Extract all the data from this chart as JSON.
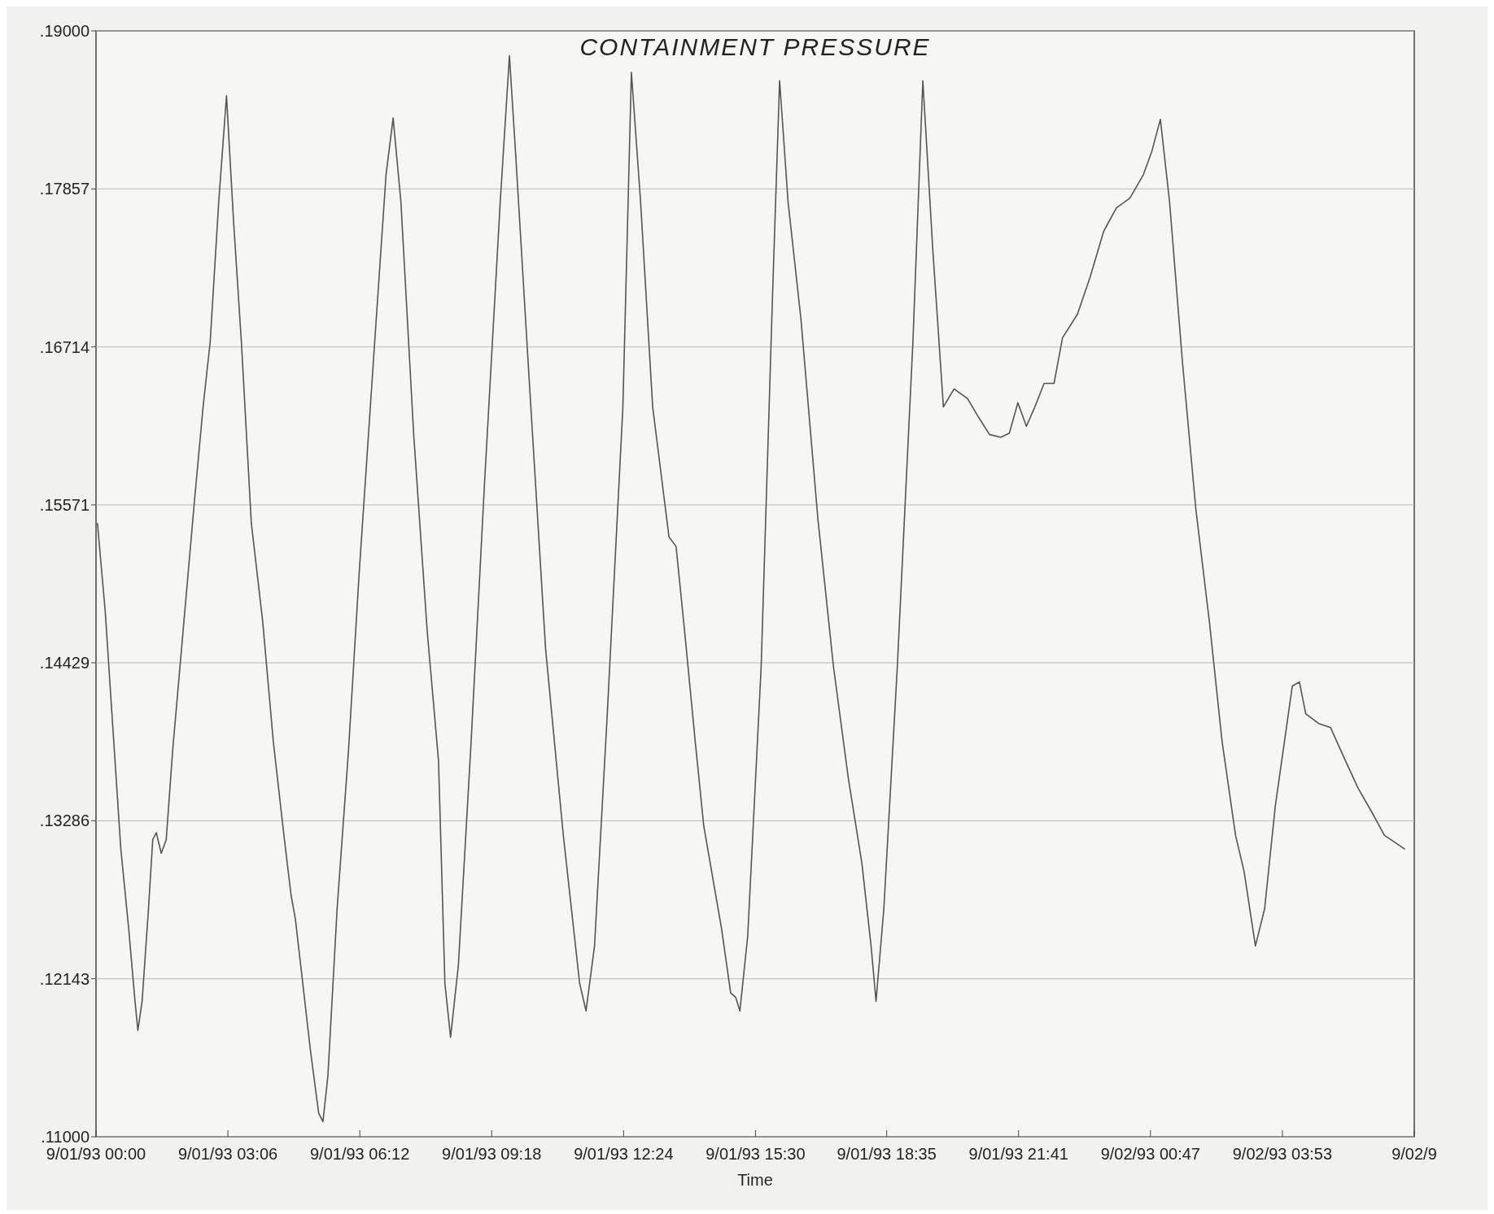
{
  "chart_data": {
    "type": "line",
    "title": "CONTAINMENT PRESSURE",
    "xlabel": "Time",
    "grid": "y",
    "xlim": [
      "1993-09-01T00:00",
      "1993-09-02T06:59"
    ],
    "ylim": [
      0.11,
      0.19
    ],
    "xticks": [
      {
        "value": "1993-09-01T00:00",
        "label": "9/01/93 00:00"
      },
      {
        "value": "1993-09-01T03:06",
        "label": "9/01/93 03:06"
      },
      {
        "value": "1993-09-01T06:12",
        "label": "9/01/93 06:12"
      },
      {
        "value": "1993-09-01T09:18",
        "label": "9/01/93 09:18"
      },
      {
        "value": "1993-09-01T12:24",
        "label": "9/01/93 12:24"
      },
      {
        "value": "1993-09-01T15:30",
        "label": "9/01/93 15:30"
      },
      {
        "value": "1993-09-01T18:35",
        "label": "9/01/93 18:35"
      },
      {
        "value": "1993-09-01T21:41",
        "label": "9/01/93 21:41"
      },
      {
        "value": "1993-09-02T00:47",
        "label": "9/02/93 00:47"
      },
      {
        "value": "1993-09-02T03:53",
        "label": "9/02/93 03:53"
      },
      {
        "value": "1993-09-02T06:59",
        "label": "9/02/9"
      }
    ],
    "yticks": [
      {
        "value": 0.11,
        "label": ".11000"
      },
      {
        "value": 0.12143,
        "label": ".12143"
      },
      {
        "value": 0.13286,
        "label": ".13286"
      },
      {
        "value": 0.14429,
        "label": ".14429"
      },
      {
        "value": 0.15571,
        "label": ".15571"
      },
      {
        "value": 0.16714,
        "label": ".16714"
      },
      {
        "value": 0.17857,
        "label": ".17857"
      },
      {
        "value": 0.19,
        "label": ".19000"
      }
    ],
    "series": [
      {
        "color": "#555555",
        "x": [
          "1993-09-01T00:02",
          "1993-09-01T00:13",
          "1993-09-01T00:25",
          "1993-09-01T00:35",
          "1993-09-01T00:46",
          "1993-09-01T00:55",
          "1993-09-01T00:59",
          "1993-09-01T01:05",
          "1993-09-01T01:14",
          "1993-09-01T01:20",
          "1993-09-01T01:25",
          "1993-09-01T01:32",
          "1993-09-01T01:39",
          "1993-09-01T01:48",
          "1993-09-01T02:04",
          "1993-09-01T02:19",
          "1993-09-01T02:31",
          "1993-09-01T02:41",
          "1993-09-01T02:53",
          "1993-09-01T03:04",
          "1993-09-01T03:14",
          "1993-09-01T03:25",
          "1993-09-01T03:39",
          "1993-09-01T03:55",
          "1993-09-01T04:10",
          "1993-09-01T04:25",
          "1993-09-01T04:35",
          "1993-09-01T04:41",
          "1993-09-01T04:50",
          "1993-09-01T05:02",
          "1993-09-01T05:14",
          "1993-09-01T05:20",
          "1993-09-01T05:27",
          "1993-09-01T05:40",
          "1993-09-01T05:56",
          "1993-09-01T06:11",
          "1993-09-01T06:33",
          "1993-09-01T06:49",
          "1993-09-01T06:59",
          "1993-09-01T07:10",
          "1993-09-01T07:28",
          "1993-09-01T07:47",
          "1993-09-01T08:03",
          "1993-09-01T08:12",
          "1993-09-01T08:20",
          "1993-09-01T08:31",
          "1993-09-01T08:49",
          "1993-09-01T09:08",
          "1993-09-01T09:30",
          "1993-09-01T09:43",
          "1993-09-01T09:52",
          "1993-09-01T10:10",
          "1993-09-01T10:34",
          "1993-09-01T10:59",
          "1993-09-01T11:22",
          "1993-09-01T11:31",
          "1993-09-01T11:43",
          "1993-09-01T12:01",
          "1993-09-01T12:23",
          "1993-09-01T12:35",
          "1993-09-01T12:48",
          "1993-09-01T13:05",
          "1993-09-01T13:28",
          "1993-09-01T13:38",
          "1993-09-01T13:50",
          "1993-09-01T14:05",
          "1993-09-01T14:17",
          "1993-09-01T14:42",
          "1993-09-01T14:55",
          "1993-09-01T15:02",
          "1993-09-01T15:08",
          "1993-09-01T15:19",
          "1993-09-01T15:38",
          "1993-09-01T15:54",
          "1993-09-01T16:04",
          "1993-09-01T16:16",
          "1993-09-01T16:34",
          "1993-09-01T16:58",
          "1993-09-01T17:20",
          "1993-09-01T17:41",
          "1993-09-01T18:00",
          "1993-09-01T18:13",
          "1993-09-01T18:20",
          "1993-09-01T18:31",
          "1993-09-01T18:50",
          "1993-09-01T19:12",
          "1993-09-01T19:26",
          "1993-09-01T19:40",
          "1993-09-01T19:55",
          "1993-09-01T20:10",
          "1993-09-01T20:29",
          "1993-09-01T20:44",
          "1993-09-01T21:00",
          "1993-09-01T21:16",
          "1993-09-01T21:28",
          "1993-09-01T21:40",
          "1993-09-01T21:52",
          "1993-09-01T22:04",
          "1993-09-01T22:17",
          "1993-09-01T22:31",
          "1993-09-01T22:43",
          "1993-09-01T23:04",
          "1993-09-01T23:22",
          "1993-09-01T23:41",
          "1993-09-01T23:59",
          "1993-09-02T00:18",
          "1993-09-02T00:37",
          "1993-09-02T00:49",
          "1993-09-02T01:01",
          "1993-09-02T01:14",
          "1993-09-02T01:32",
          "1993-09-02T01:51",
          "1993-09-02T02:10",
          "1993-09-02T02:28",
          "1993-09-02T02:47",
          "1993-09-02T02:59",
          "1993-09-02T03:15",
          "1993-09-02T03:28",
          "1993-09-02T03:43",
          "1993-09-02T04:07",
          "1993-09-02T04:17",
          "1993-09-02T04:26",
          "1993-09-02T04:44",
          "1993-09-02T05:01",
          "1993-09-02T05:22",
          "1993-09-02T05:40",
          "1993-09-02T05:59",
          "1993-09-02T06:17",
          "1993-09-02T06:46"
        ],
        "values": [
          0.1544,
          0.148,
          0.1386,
          0.1308,
          0.1251,
          0.1198,
          0.1177,
          0.1198,
          0.1265,
          0.1315,
          0.132,
          0.1305,
          0.1315,
          0.1379,
          0.1473,
          0.1561,
          0.1628,
          0.1675,
          0.1776,
          0.1853,
          0.1762,
          0.1675,
          0.1544,
          0.1473,
          0.1386,
          0.1318,
          0.1275,
          0.1258,
          0.1218,
          0.1164,
          0.1117,
          0.1111,
          0.1144,
          0.1265,
          0.1379,
          0.1507,
          0.1675,
          0.1796,
          0.1837,
          0.1776,
          0.1608,
          0.1466,
          0.1372,
          0.1211,
          0.1172,
          0.1224,
          0.1386,
          0.1574,
          0.1776,
          0.1882,
          0.1809,
          0.1655,
          0.1453,
          0.1318,
          0.1211,
          0.1191,
          0.1238,
          0.1406,
          0.1628,
          0.187,
          0.1776,
          0.1628,
          0.1534,
          0.1527,
          0.1466,
          0.1386,
          0.1325,
          0.1251,
          0.1204,
          0.1201,
          0.1191,
          0.1245,
          0.144,
          0.1708,
          0.1864,
          0.1776,
          0.1692,
          0.1547,
          0.144,
          0.1359,
          0.1298,
          0.1238,
          0.1198,
          0.1265,
          0.144,
          0.1675,
          0.1864,
          0.1742,
          0.1628,
          0.1641,
          0.1634,
          0.1621,
          0.1608,
          0.1606,
          0.1609,
          0.1631,
          0.1614,
          0.1628,
          0.1645,
          0.1645,
          0.1678,
          0.1695,
          0.1722,
          0.1755,
          0.1772,
          0.1779,
          0.1796,
          0.1813,
          0.1836,
          0.1776,
          0.1661,
          0.1554,
          0.1473,
          0.1386,
          0.1318,
          0.1292,
          0.1238,
          0.1265,
          0.1339,
          0.1426,
          0.1429,
          0.1406,
          0.1399,
          0.1396,
          0.1372,
          0.1352,
          0.1335,
          0.1318,
          0.1308
        ]
      }
    ]
  }
}
